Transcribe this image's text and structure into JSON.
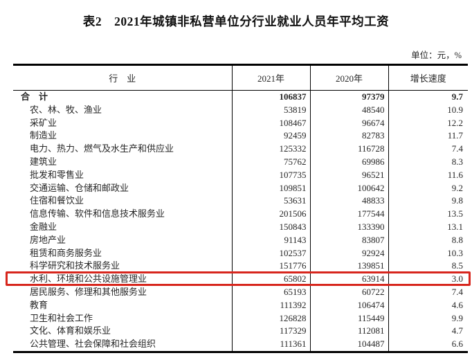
{
  "title": "表2　2021年城镇非私营单位分行业就业人员年平均工资",
  "unit_note": "单位：元，%",
  "table": {
    "columns": [
      "行　业",
      "2021年",
      "2020年",
      "增长速度"
    ],
    "rows": [
      {
        "industry": "合　计",
        "y2021": "106837",
        "y2020": "97379",
        "growth": "9.7",
        "bold": true,
        "indent": false
      },
      {
        "industry": "农、林、牧、渔业",
        "y2021": "53819",
        "y2020": "48540",
        "growth": "10.9",
        "bold": false,
        "indent": true
      },
      {
        "industry": "采矿业",
        "y2021": "108467",
        "y2020": "96674",
        "growth": "12.2",
        "bold": false,
        "indent": true
      },
      {
        "industry": "制造业",
        "y2021": "92459",
        "y2020": "82783",
        "growth": "11.7",
        "bold": false,
        "indent": true
      },
      {
        "industry": "电力、热力、燃气及水生产和供应业",
        "y2021": "125332",
        "y2020": "116728",
        "growth": "7.4",
        "bold": false,
        "indent": true
      },
      {
        "industry": "建筑业",
        "y2021": "75762",
        "y2020": "69986",
        "growth": "8.3",
        "bold": false,
        "indent": true
      },
      {
        "industry": "批发和零售业",
        "y2021": "107735",
        "y2020": "96521",
        "growth": "11.6",
        "bold": false,
        "indent": true
      },
      {
        "industry": "交通运输、仓储和邮政业",
        "y2021": "109851",
        "y2020": "100642",
        "growth": "9.2",
        "bold": false,
        "indent": true
      },
      {
        "industry": "住宿和餐饮业",
        "y2021": "53631",
        "y2020": "48833",
        "growth": "9.8",
        "bold": false,
        "indent": true
      },
      {
        "industry": "信息传输、软件和信息技术服务业",
        "y2021": "201506",
        "y2020": "177544",
        "growth": "13.5",
        "bold": false,
        "indent": true
      },
      {
        "industry": "金融业",
        "y2021": "150843",
        "y2020": "133390",
        "growth": "13.1",
        "bold": false,
        "indent": true
      },
      {
        "industry": "房地产业",
        "y2021": "91143",
        "y2020": "83807",
        "growth": "8.8",
        "bold": false,
        "indent": true
      },
      {
        "industry": "租赁和商务服务业",
        "y2021": "102537",
        "y2020": "92924",
        "growth": "10.3",
        "bold": false,
        "indent": true
      },
      {
        "industry": "科学研究和技术服务业",
        "y2021": "151776",
        "y2020": "139851",
        "growth": "8.5",
        "bold": false,
        "indent": true
      },
      {
        "industry": "水利、环境和公共设施管理业",
        "y2021": "65802",
        "y2020": "63914",
        "growth": "3.0",
        "bold": false,
        "indent": true,
        "highlighted": true
      },
      {
        "industry": "居民服务、修理和其他服务业",
        "y2021": "65193",
        "y2020": "60722",
        "growth": "7.4",
        "bold": false,
        "indent": true
      },
      {
        "industry": "教育",
        "y2021": "111392",
        "y2020": "106474",
        "growth": "4.6",
        "bold": false,
        "indent": true
      },
      {
        "industry": "卫生和社会工作",
        "y2021": "126828",
        "y2020": "115449",
        "growth": "9.9",
        "bold": false,
        "indent": true
      },
      {
        "industry": "文化、体育和娱乐业",
        "y2021": "117329",
        "y2020": "112081",
        "growth": "4.7",
        "bold": false,
        "indent": true
      },
      {
        "industry": "公共管理、社会保障和社会组织",
        "y2021": "111361",
        "y2020": "104487",
        "growth": "6.6",
        "bold": false,
        "indent": true
      }
    ],
    "highlight": {
      "row_index": 14,
      "color": "#d7261d"
    }
  }
}
